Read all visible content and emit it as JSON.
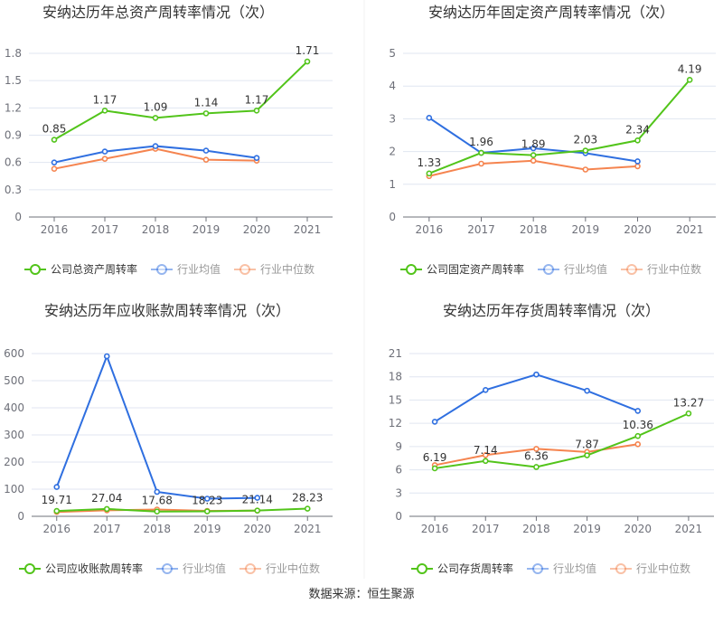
{
  "source": "数据来源：恒生聚源",
  "colors": {
    "company": "#52c41a",
    "avg": "#2f6fe0",
    "median": "#f5844f",
    "grid": "#e0e6f1",
    "axis": "#6e7079"
  },
  "chart_data": [
    {
      "type": "line",
      "title": "安纳达历年总资产周转率情况（次）",
      "categories": [
        "2016",
        "2017",
        "2018",
        "2019",
        "2020",
        "2021"
      ],
      "yticks": [
        "0",
        "0.3",
        "0.6",
        "0.9",
        "1.2",
        "1.5",
        "1.8"
      ],
      "ylim": [
        0,
        1.8
      ],
      "series": [
        {
          "name": "公司总资产周转率",
          "role": "company",
          "values": [
            0.85,
            1.17,
            1.09,
            1.14,
            1.17,
            1.71
          ],
          "labels": [
            "0.85",
            "1.17",
            "1.09",
            "1.14",
            "1.17",
            "1.71"
          ]
        },
        {
          "name": "行业均值",
          "role": "avg",
          "values": [
            0.6,
            0.72,
            0.78,
            0.73,
            0.65,
            null
          ]
        },
        {
          "name": "行业中位数",
          "role": "median",
          "values": [
            0.53,
            0.64,
            0.75,
            0.63,
            0.62,
            null
          ]
        }
      ]
    },
    {
      "type": "line",
      "title": "安纳达历年固定资产周转率情况（次）",
      "categories": [
        "2016",
        "2017",
        "2018",
        "2019",
        "2020",
        "2021"
      ],
      "yticks": [
        "0",
        "1",
        "2",
        "3",
        "4",
        "5"
      ],
      "ylim": [
        0,
        5
      ],
      "series": [
        {
          "name": "公司固定资产周转率",
          "role": "company",
          "values": [
            1.33,
            1.96,
            1.89,
            2.03,
            2.34,
            4.19
          ],
          "labels": [
            "1.33",
            "1.96",
            "1.89",
            "2.03",
            "2.34",
            "4.19"
          ]
        },
        {
          "name": "行业均值",
          "role": "avg",
          "values": [
            3.03,
            1.96,
            2.1,
            1.95,
            1.7,
            null
          ]
        },
        {
          "name": "行业中位数",
          "role": "median",
          "values": [
            1.25,
            1.63,
            1.72,
            1.45,
            1.55,
            null
          ]
        }
      ]
    },
    {
      "type": "line",
      "title": "安纳达历年应收账款周转率情况（次）",
      "categories": [
        "2016",
        "2017",
        "2018",
        "2019",
        "2020",
        "2021"
      ],
      "yticks": [
        "0",
        "100",
        "200",
        "300",
        "400",
        "500",
        "600"
      ],
      "ylim": [
        0,
        600
      ],
      "series": [
        {
          "name": "公司应收账款周转率",
          "role": "company",
          "values": [
            19.71,
            27.04,
            17.68,
            18.23,
            21.14,
            28.23
          ],
          "labels": [
            "19.71",
            "27.04",
            "17.68",
            "18.23",
            "21.14",
            "28.23"
          ]
        },
        {
          "name": "行业均值",
          "role": "avg",
          "values": [
            108,
            590,
            90,
            65,
            68,
            null
          ]
        },
        {
          "name": "行业中位数",
          "role": "median",
          "values": [
            16,
            22,
            25,
            20,
            21,
            null
          ]
        }
      ]
    },
    {
      "type": "line",
      "title": "安纳达历年存货周转率情况（次）",
      "categories": [
        "2016",
        "2017",
        "2018",
        "2019",
        "2020",
        "2021"
      ],
      "yticks": [
        "0",
        "3",
        "6",
        "9",
        "12",
        "15",
        "18",
        "21"
      ],
      "ylim": [
        0,
        21
      ],
      "series": [
        {
          "name": "公司存货周转率",
          "role": "company",
          "values": [
            6.19,
            7.14,
            6.36,
            7.87,
            10.36,
            13.27
          ],
          "labels": [
            "6.19",
            "7.14",
            "6.36",
            "7.87",
            "10.36",
            "13.27"
          ]
        },
        {
          "name": "行业均值",
          "role": "avg",
          "values": [
            12.2,
            16.3,
            18.3,
            16.2,
            13.6,
            null
          ]
        },
        {
          "name": "行业中位数",
          "role": "median",
          "values": [
            6.6,
            7.9,
            8.7,
            8.3,
            9.3,
            null
          ]
        }
      ]
    }
  ]
}
